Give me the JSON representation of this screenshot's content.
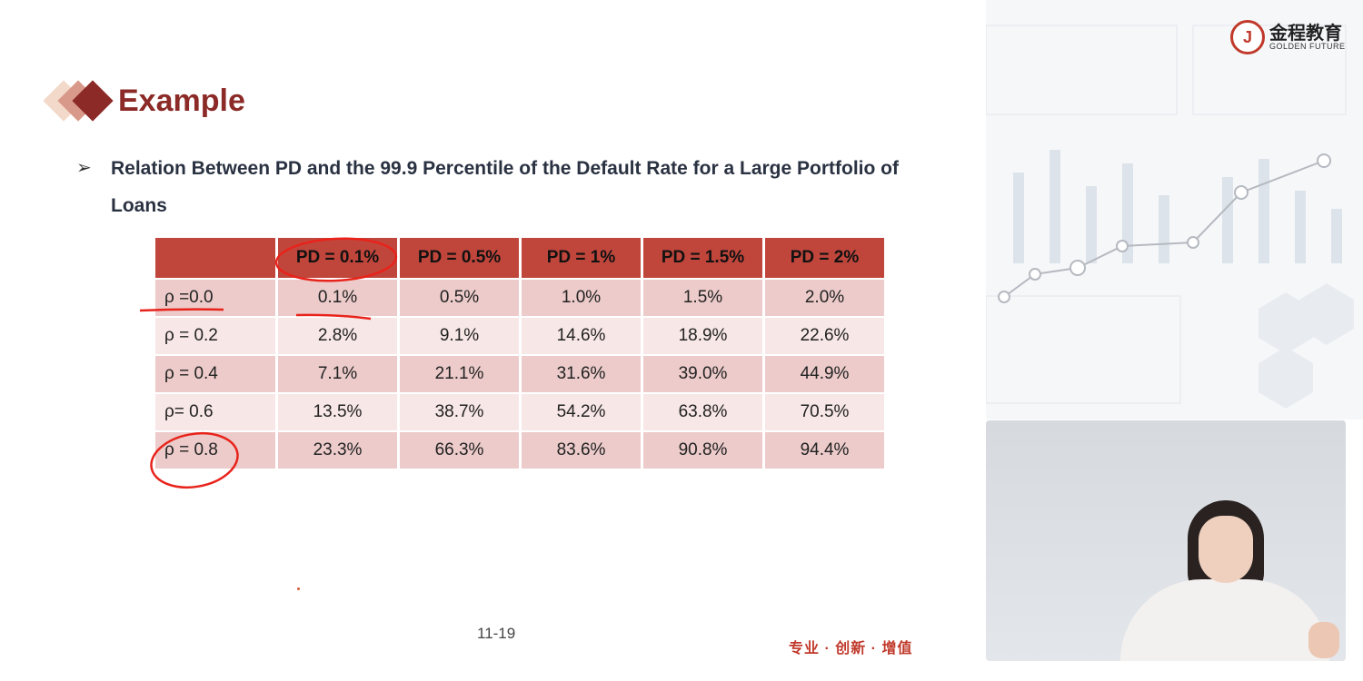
{
  "slide": {
    "title": "Example",
    "subtitle": "Relation Between PD and the 99.9 Percentile of the Default Rate for a Large Portfolio of Loans",
    "page_number": "11-19",
    "slogan": "专业 · 创新 · 增值"
  },
  "table": {
    "headers": [
      "",
      "PD = 0.1%",
      "PD = 0.5%",
      "PD = 1%",
      "PD = 1.5%",
      "PD = 2%"
    ],
    "rows": [
      [
        "ρ =0.0",
        "0.1%",
        "0.5%",
        "1.0%",
        "1.5%",
        "2.0%"
      ],
      [
        "ρ = 0.2",
        "2.8%",
        "9.1%",
        "14.6%",
        "18.9%",
        "22.6%"
      ],
      [
        "ρ = 0.4",
        "7.1%",
        "21.1%",
        "31.6%",
        "39.0%",
        "44.9%"
      ],
      [
        "ρ= 0.6",
        "13.5%",
        "38.7%",
        "54.2%",
        "63.8%",
        "70.5%"
      ],
      [
        "ρ = 0.8",
        "23.3%",
        "66.3%",
        "83.6%",
        "90.8%",
        "94.4%"
      ]
    ]
  },
  "logo": {
    "cn": "金程教育",
    "en": "GOLDEN FUTURE",
    "mark": "J"
  },
  "colors": {
    "accent": "#8b2a26",
    "header_bg": "#c0463c",
    "row_odd": "#eccbca",
    "row_even": "#f7e7e6",
    "annotation": "#e8231b"
  },
  "icons": {
    "bullet": "arrowhead-bullet-icon",
    "logo": "golden-future-logo-icon"
  }
}
